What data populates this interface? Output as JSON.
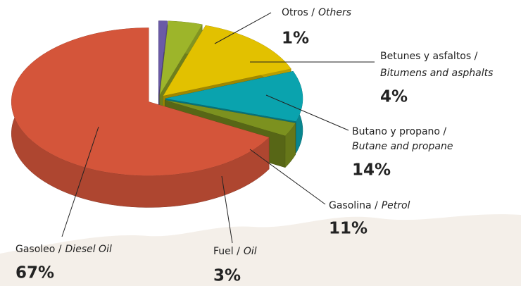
{
  "chart_data": {
    "type": "pie",
    "categories": [
      {
        "es": "Otros /",
        "en": "Others"
      },
      {
        "es": "Betunes y asfaltos /",
        "en": "Bitumens and asphalts"
      },
      {
        "es": "Butano y propano /",
        "en": "Butane and propane"
      },
      {
        "es": "Gasolina /",
        "en": "Petrol"
      },
      {
        "es": "Fuel /",
        "en": "Oil"
      },
      {
        "es": "Gasoleo /",
        "en": "Diesel Oil"
      }
    ],
    "values": [
      1,
      4,
      14,
      11,
      3,
      67
    ],
    "value_labels": [
      "1%",
      "4%",
      "14%",
      "11%",
      "3%",
      "67%"
    ],
    "colors": [
      "#6a5aa6",
      "#9db52a",
      "#e2c100",
      "#0aa3ae",
      "#7c911f",
      "#d4553a"
    ]
  }
}
